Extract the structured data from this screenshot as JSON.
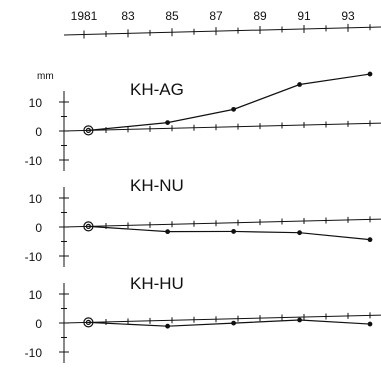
{
  "chart_data": {
    "type": "line",
    "x_tick_labels": [
      "1981",
      "83",
      "85",
      "87",
      "89",
      "91",
      "93"
    ],
    "x_tick_years": [
      1981,
      1983,
      1985,
      1987,
      1989,
      1991,
      1993
    ],
    "xlim": [
      1981,
      1994.5
    ],
    "unit": "mm",
    "y_tick_labels": [
      "10",
      "0",
      "-10"
    ],
    "ylim": [
      -10,
      10
    ],
    "panels": [
      {
        "title": "KH-AG",
        "x": [
          1981.2,
          1984.8,
          1987.8,
          1990.8,
          1994
        ],
        "y": [
          0,
          2,
          6,
          14,
          17
        ]
      },
      {
        "title": "KH-NU",
        "x": [
          1981.2,
          1984.8,
          1987.8,
          1990.8,
          1994
        ],
        "y": [
          0,
          -2.5,
          -3,
          -4,
          -7
        ]
      },
      {
        "title": "KH-HU",
        "x": [
          1981.2,
          1984.8,
          1987.8,
          1990.8,
          1994
        ],
        "y": [
          0,
          -2,
          -1.5,
          -1,
          -3
        ]
      }
    ]
  }
}
